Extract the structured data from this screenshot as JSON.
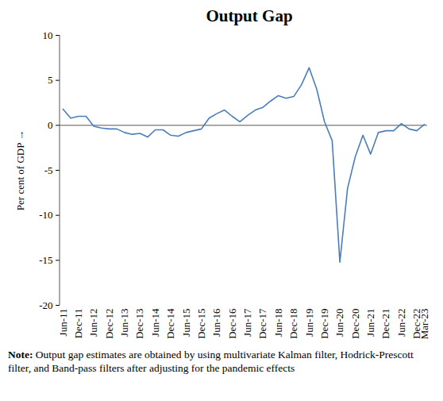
{
  "chart_data": {
    "type": "line",
    "title": "Output Gap",
    "y_label": "Per cent of GDP",
    "note": "Note: Output gap estimates are obtained by using multivariate Kalman filter, Hodrick-Prescott filter, and Band-pass filters after adjusting for the pandemic effects",
    "categories": [
      "Jun-11",
      null,
      "Dec-11",
      null,
      "Jun-12",
      null,
      "Dec-12",
      null,
      "Jun-13",
      null,
      "Dec-13",
      null,
      "Jun-14",
      null,
      "Dec-14",
      null,
      "Jun-15",
      null,
      "Dec-15",
      null,
      "Jun-16",
      null,
      "Dec-16",
      null,
      "Jun-17",
      null,
      "Dec-17",
      null,
      "Jun-18",
      null,
      "Dec-18",
      null,
      "Jun-19",
      null,
      "Dec-19",
      null,
      "Jun-20",
      null,
      "Dec-20",
      null,
      "Jun-21",
      null,
      "Dec-21",
      null,
      "Jun-22",
      null,
      "Dec-22",
      "Mar-23"
    ],
    "values": [
      1.8,
      0.8,
      1.0,
      1.0,
      -0.1,
      -0.3,
      -0.4,
      -0.4,
      -0.8,
      -1.0,
      -0.9,
      -1.3,
      -0.5,
      -0.5,
      -1.1,
      -1.2,
      -0.8,
      -0.6,
      -0.4,
      0.8,
      1.3,
      1.7,
      1.0,
      0.4,
      1.1,
      1.7,
      2.0,
      2.7,
      3.3,
      3.0,
      3.2,
      4.5,
      6.4,
      4.0,
      0.4,
      -1.7,
      -15.2,
      -7.0,
      -3.5,
      -1.1,
      -3.2,
      -0.8,
      -0.6,
      -0.6,
      0.2,
      -0.4,
      -0.6,
      0.1
    ],
    "color": "#4a7ebb",
    "ylim": [
      -20,
      10
    ],
    "yticks": [
      -20,
      -15,
      -10,
      -5,
      0,
      5,
      10
    ]
  }
}
